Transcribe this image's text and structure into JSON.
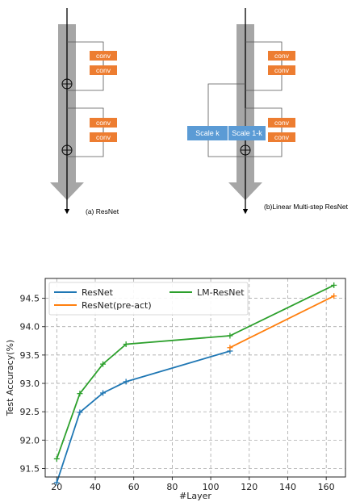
{
  "diagram": {
    "conv_label": "conv",
    "scale_k_label": "Scale k",
    "scale_1k_label": "Scale 1-k",
    "caption_a": "(a) ResNet",
    "caption_b": "(b)Linear Multi-step ResNet",
    "colors": {
      "conv": "#ed7d31",
      "scale": "#5b9bd5",
      "trunk": "#a6a6a6"
    }
  },
  "chart_data": {
    "type": "line",
    "xlabel": "#Layer",
    "ylabel": "Test Accuracy(%)",
    "xlim": [
      14,
      170
    ],
    "ylim": [
      91.35,
      94.85
    ],
    "xticks": [
      20,
      40,
      60,
      80,
      100,
      120,
      140,
      160
    ],
    "yticks": [
      91.5,
      92.0,
      92.5,
      93.0,
      93.5,
      94.0,
      94.5
    ],
    "ytick_labels": [
      "91.5",
      "92.0",
      "92.5",
      "93.0",
      "93.5",
      "94.0",
      "94.5"
    ],
    "grid": true,
    "legend_position": "upper-left",
    "series": [
      {
        "name": "ResNet",
        "color": "#1f77b4",
        "x": [
          20,
          32,
          44,
          56,
          110
        ],
        "y": [
          91.25,
          92.49,
          92.83,
          93.03,
          93.57
        ]
      },
      {
        "name": "ResNet(pre-act)",
        "color": "#ff7f0e",
        "x": [
          110,
          164
        ],
        "y": [
          93.63,
          94.54
        ]
      },
      {
        "name": "LM-ResNet",
        "color": "#2ca02c",
        "x": [
          20,
          32,
          44,
          56,
          110,
          164
        ],
        "y": [
          91.67,
          92.82,
          93.34,
          93.69,
          93.84,
          94.73
        ]
      }
    ]
  }
}
